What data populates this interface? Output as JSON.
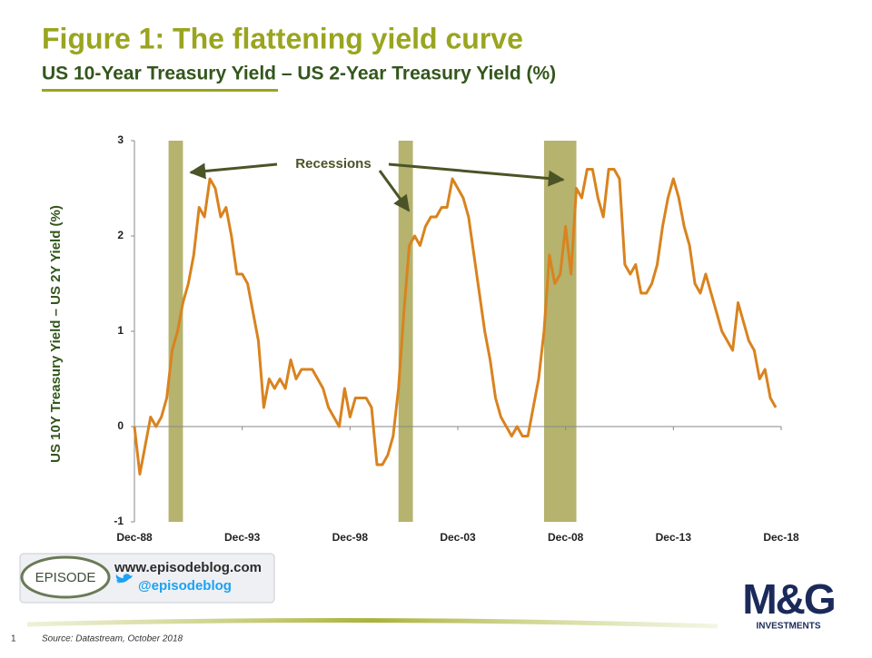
{
  "header": {
    "title": "Figure 1: The flattening yield curve",
    "subtitle": "US 10-Year Treasury Yield – US 2-Year Treasury Yield (%)"
  },
  "chart_data": {
    "type": "line",
    "y_label": "US 10Y Treasury Yield – US 2Y Yield (%)",
    "annotations": [
      "Recessions"
    ],
    "color": "#d9831e",
    "recession_color": "#b5b36e",
    "recessions": [
      {
        "start": "1990-07",
        "end": "1991-03"
      },
      {
        "start": "2001-03",
        "end": "2001-11"
      },
      {
        "start": "2007-12",
        "end": "2009-06"
      }
    ],
    "xlim": [
      "1988-12",
      "2018-12"
    ],
    "xticks": [
      {
        "value": "1988-12",
        "label": "Dec-88"
      },
      {
        "value": "1993-12",
        "label": "Dec-93"
      },
      {
        "value": "1998-12",
        "label": "Dec-98"
      },
      {
        "value": "2003-12",
        "label": "Dec-03"
      },
      {
        "value": "2008-12",
        "label": "Dec-08"
      },
      {
        "value": "2013-12",
        "label": "Dec-13"
      },
      {
        "value": "2018-12",
        "label": "Dec-18"
      }
    ],
    "ylim": [
      -1,
      3
    ],
    "yticks": [
      -1,
      0,
      1,
      2,
      3
    ],
    "x": [
      "1988-12",
      "1989-03",
      "1989-06",
      "1989-09",
      "1989-12",
      "1990-03",
      "1990-06",
      "1990-09",
      "1990-12",
      "1991-03",
      "1991-06",
      "1991-09",
      "1991-12",
      "1992-03",
      "1992-06",
      "1992-09",
      "1992-12",
      "1993-03",
      "1993-06",
      "1993-09",
      "1993-12",
      "1994-03",
      "1994-06",
      "1994-09",
      "1994-12",
      "1995-03",
      "1995-06",
      "1995-09",
      "1995-12",
      "1996-03",
      "1996-06",
      "1996-09",
      "1996-12",
      "1997-03",
      "1997-06",
      "1997-09",
      "1997-12",
      "1998-03",
      "1998-06",
      "1998-09",
      "1998-12",
      "1999-03",
      "1999-06",
      "1999-09",
      "1999-12",
      "2000-03",
      "2000-06",
      "2000-09",
      "2000-12",
      "2001-03",
      "2001-06",
      "2001-09",
      "2001-12",
      "2002-03",
      "2002-06",
      "2002-09",
      "2002-12",
      "2003-03",
      "2003-06",
      "2003-09",
      "2003-12",
      "2004-03",
      "2004-06",
      "2004-09",
      "2004-12",
      "2005-03",
      "2005-06",
      "2005-09",
      "2005-12",
      "2006-03",
      "2006-06",
      "2006-09",
      "2006-12",
      "2007-03",
      "2007-06",
      "2007-09",
      "2007-12",
      "2008-03",
      "2008-06",
      "2008-09",
      "2008-12",
      "2009-03",
      "2009-06",
      "2009-09",
      "2009-12",
      "2010-03",
      "2010-06",
      "2010-09",
      "2010-12",
      "2011-03",
      "2011-06",
      "2011-09",
      "2011-12",
      "2012-03",
      "2012-06",
      "2012-09",
      "2012-12",
      "2013-03",
      "2013-06",
      "2013-09",
      "2013-12",
      "2014-03",
      "2014-06",
      "2014-09",
      "2014-12",
      "2015-03",
      "2015-06",
      "2015-09",
      "2015-12",
      "2016-03",
      "2016-06",
      "2016-09",
      "2016-12",
      "2017-03",
      "2017-06",
      "2017-09",
      "2017-12",
      "2018-03",
      "2018-06",
      "2018-09"
    ],
    "values": [
      0.0,
      -0.5,
      -0.2,
      0.1,
      0.0,
      0.1,
      0.3,
      0.8,
      1.0,
      1.3,
      1.5,
      1.8,
      2.3,
      2.2,
      2.6,
      2.5,
      2.2,
      2.3,
      2.0,
      1.6,
      1.6,
      1.5,
      1.2,
      0.9,
      0.2,
      0.5,
      0.4,
      0.5,
      0.4,
      0.7,
      0.5,
      0.6,
      0.6,
      0.6,
      0.5,
      0.4,
      0.2,
      0.1,
      0.0,
      0.4,
      0.1,
      0.3,
      0.3,
      0.3,
      0.2,
      -0.4,
      -0.4,
      -0.3,
      -0.1,
      0.4,
      1.2,
      1.9,
      2.0,
      1.9,
      2.1,
      2.2,
      2.2,
      2.3,
      2.3,
      2.6,
      2.5,
      2.4,
      2.2,
      1.8,
      1.4,
      1.0,
      0.7,
      0.3,
      0.1,
      0.0,
      -0.1,
      0.0,
      -0.1,
      -0.1,
      0.2,
      0.5,
      1.0,
      1.8,
      1.5,
      1.6,
      2.1,
      1.6,
      2.5,
      2.4,
      2.7,
      2.7,
      2.4,
      2.2,
      2.7,
      2.7,
      2.6,
      1.7,
      1.6,
      1.7,
      1.4,
      1.4,
      1.5,
      1.7,
      2.1,
      2.4,
      2.6,
      2.4,
      2.1,
      1.9,
      1.5,
      1.4,
      1.6,
      1.4,
      1.2,
      1.0,
      0.9,
      0.8,
      1.3,
      1.1,
      0.9,
      0.8,
      0.5,
      0.6,
      0.3,
      0.2
    ]
  },
  "footer": {
    "logo": "EPISODE",
    "website": "www.episodeblog.com",
    "twitter": "@episodeblog",
    "brand": "M&G",
    "brand_sub": "INVESTMENTS",
    "page": 1,
    "source": "Source: Datastream, October 2018"
  }
}
